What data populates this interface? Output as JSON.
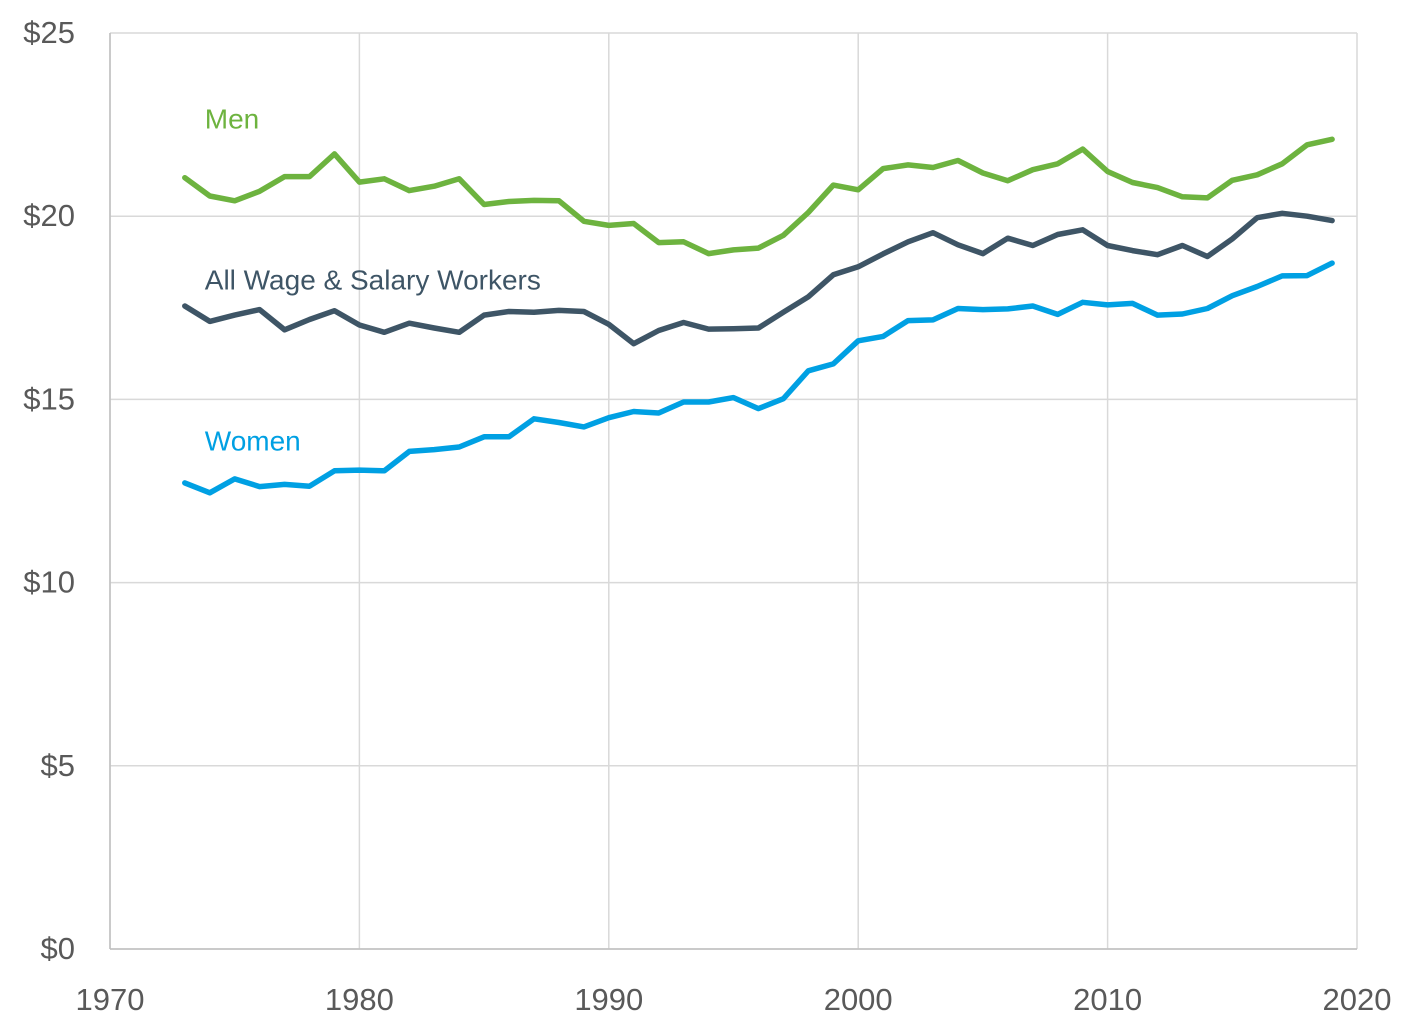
{
  "chart_data": {
    "type": "line",
    "title": "",
    "xlabel": "",
    "ylabel": "",
    "xlim": [
      1970,
      2020
    ],
    "ylim": [
      0,
      25
    ],
    "grid": true,
    "legend": "inline labels",
    "x_ticks": [
      {
        "value": 1970,
        "label": "1970"
      },
      {
        "value": 1980,
        "label": "1980"
      },
      {
        "value": 1990,
        "label": "1990"
      },
      {
        "value": 2000,
        "label": "2000"
      },
      {
        "value": 2010,
        "label": "2010"
      },
      {
        "value": 2020,
        "label": "2020"
      }
    ],
    "y_ticks": [
      {
        "value": 0,
        "label": "$0"
      },
      {
        "value": 5,
        "label": "$5"
      },
      {
        "value": 10,
        "label": "$10"
      },
      {
        "value": 15,
        "label": "$15"
      },
      {
        "value": 20,
        "label": "$20"
      },
      {
        "value": 25,
        "label": "$25"
      }
    ],
    "x": [
      1973,
      1974,
      1975,
      1976,
      1977,
      1978,
      1979,
      1980,
      1981,
      1982,
      1983,
      1984,
      1985,
      1986,
      1987,
      1988,
      1989,
      1990,
      1991,
      1992,
      1993,
      1994,
      1995,
      1996,
      1997,
      1998,
      1999,
      2000,
      2001,
      2002,
      2003,
      2004,
      2005,
      2006,
      2007,
      2008,
      2009,
      2010,
      2011,
      2012,
      2013,
      2014,
      2015,
      2016,
      2017,
      2018,
      2019
    ],
    "series": [
      {
        "name": "Men",
        "color": "#6db33f",
        "label_pos": {
          "x": 1973.8,
          "y": 22.4
        },
        "values": [
          21.05,
          20.55,
          20.42,
          20.68,
          21.08,
          21.08,
          21.7,
          20.93,
          21.02,
          20.7,
          20.82,
          21.02,
          20.32,
          20.4,
          20.43,
          20.42,
          19.86,
          19.75,
          19.8,
          19.28,
          19.3,
          18.98,
          19.08,
          19.13,
          19.48,
          20.1,
          20.85,
          20.72,
          21.3,
          21.4,
          21.33,
          21.52,
          21.18,
          20.97,
          21.27,
          21.43,
          21.83,
          21.22,
          20.92,
          20.78,
          20.53,
          20.5,
          20.98,
          21.13,
          21.43,
          21.95,
          22.1
        ]
      },
      {
        "name": "All Wage & Salary Workers",
        "color": "#3e5566",
        "label_pos": {
          "x": 1973.8,
          "y": 18.0
        },
        "values": [
          17.55,
          17.13,
          17.3,
          17.45,
          16.9,
          17.18,
          17.42,
          17.03,
          16.83,
          17.08,
          16.95,
          16.83,
          17.3,
          17.4,
          17.38,
          17.43,
          17.4,
          17.05,
          16.52,
          16.88,
          17.1,
          16.92,
          16.93,
          16.95,
          17.38,
          17.8,
          18.4,
          18.62,
          18.97,
          19.3,
          19.55,
          19.22,
          18.98,
          19.4,
          19.2,
          19.5,
          19.63,
          19.2,
          19.06,
          18.95,
          19.2,
          18.9,
          19.38,
          19.96,
          20.08,
          20.0,
          19.88
        ]
      },
      {
        "name": "Women",
        "color": "#00a0e3",
        "label_pos": {
          "x": 1973.8,
          "y": 13.6
        },
        "values": [
          12.72,
          12.45,
          12.83,
          12.62,
          12.68,
          12.63,
          13.05,
          13.07,
          13.05,
          13.58,
          13.63,
          13.7,
          13.98,
          13.98,
          14.47,
          14.37,
          14.25,
          14.5,
          14.67,
          14.63,
          14.93,
          14.93,
          15.05,
          14.75,
          15.02,
          15.78,
          15.97,
          16.6,
          16.72,
          17.15,
          17.17,
          17.48,
          17.45,
          17.47,
          17.55,
          17.32,
          17.65,
          17.58,
          17.62,
          17.3,
          17.33,
          17.48,
          17.83,
          18.08,
          18.37,
          18.38,
          18.72
        ]
      }
    ]
  }
}
